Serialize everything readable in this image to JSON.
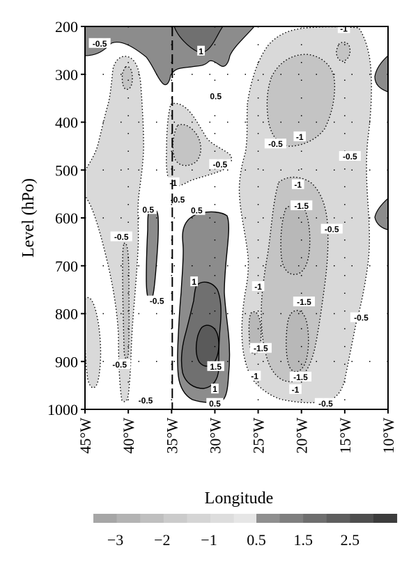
{
  "chart_data": {
    "type": "heatmap",
    "subtype": "filled-contour",
    "title": "",
    "xlabel": "Longitude",
    "ylabel": "Level (hPo)",
    "xlim": [
      45,
      10
    ],
    "ylim": [
      1000,
      200
    ],
    "x_direction": "degrees west, decreasing to the right",
    "y_scale": "pressure, inverted (1000 at bottom, 200 at top)",
    "x_ticks": [
      45,
      40,
      35,
      30,
      25,
      20,
      15,
      10
    ],
    "x_tick_labels": [
      "45°W",
      "40°W",
      "35°W",
      "30°W",
      "25°W",
      "20°W",
      "15°W",
      "10°W"
    ],
    "y_ticks": [
      200,
      300,
      400,
      500,
      600,
      700,
      800,
      900,
      1000
    ],
    "y_tick_labels": [
      "200",
      "300",
      "400",
      "500",
      "600",
      "700",
      "800",
      "900",
      "1000"
    ],
    "grid": "dotted",
    "reference_line": {
      "longitude": 35,
      "style": "dashed"
    },
    "fill_colors": {
      "neg": "#d9d9d9",
      "neg_deep": "#c4c4c4",
      "pos_0_5": "#8c8c8c",
      "pos_1": "#707070",
      "pos_1_5": "#5a5a5a"
    },
    "regions": [
      {
        "sign": "positive",
        "lon_range": [
          45,
          29
        ],
        "level_range": [
          200,
          330
        ],
        "peak": 1.0
      },
      {
        "sign": "positive",
        "lon_range": [
          33,
          28
        ],
        "level_range": [
          580,
          980
        ],
        "peak": 1.5
      },
      {
        "sign": "positive",
        "lon_range": [
          38,
          37
        ],
        "level_range": [
          580,
          770
        ],
        "peak": 0.5
      },
      {
        "sign": "positive",
        "lon_range": [
          11,
          10
        ],
        "level_range": [
          260,
          350
        ],
        "peak": 0.5
      },
      {
        "sign": "positive",
        "lon_range": [
          11,
          10
        ],
        "level_range": [
          560,
          640
        ],
        "peak": 0.5
      },
      {
        "sign": "negative",
        "lon_range": [
          45,
          38
        ],
        "level_range": [
          250,
          950
        ],
        "peak": -0.5
      },
      {
        "sign": "negative",
        "lon_range": [
          36,
          33
        ],
        "level_range": [
          350,
          560
        ],
        "peak": -1.0
      },
      {
        "sign": "negative",
        "lon_range": [
          28,
          14
        ],
        "level_range": [
          200,
          980
        ],
        "peak": -1.5
      }
    ],
    "contour_labels": [
      {
        "text": "-0.5",
        "lon": 43.3,
        "level": 236
      },
      {
        "text": "1",
        "lon": 31.6,
        "level": 252
      },
      {
        "text": "0.5",
        "lon": 29.9,
        "level": 346
      },
      {
        "text": "-1",
        "lon": 15.1,
        "level": 205
      },
      {
        "text": "-0.5",
        "lon": 23.0,
        "level": 446
      },
      {
        "text": "-1",
        "lon": 20.2,
        "level": 431
      },
      {
        "text": "-0.5",
        "lon": 14.4,
        "level": 472
      },
      {
        "text": "-0.5",
        "lon": 29.4,
        "level": 489
      },
      {
        "text": "-1",
        "lon": 34.8,
        "level": 527
      },
      {
        "text": "-0.5",
        "lon": 34.3,
        "level": 562
      },
      {
        "text": "-1",
        "lon": 20.4,
        "level": 531
      },
      {
        "text": "0.5",
        "lon": 37.7,
        "level": 583
      },
      {
        "text": "0.5",
        "lon": 32.1,
        "level": 585
      },
      {
        "text": "-1.5",
        "lon": 20.0,
        "level": 575
      },
      {
        "text": "-0.5",
        "lon": 16.5,
        "level": 624
      },
      {
        "text": "-0.5",
        "lon": 40.8,
        "level": 640
      },
      {
        "text": "1",
        "lon": 32.4,
        "level": 734
      },
      {
        "text": "-0.5",
        "lon": 36.7,
        "level": 774
      },
      {
        "text": "-1",
        "lon": 25.0,
        "level": 744
      },
      {
        "text": "-1.5",
        "lon": 19.7,
        "level": 776
      },
      {
        "text": "-0.5",
        "lon": 13.1,
        "level": 809
      },
      {
        "text": "-1.5",
        "lon": 24.7,
        "level": 873
      },
      {
        "text": "-0.5",
        "lon": 41.0,
        "level": 907
      },
      {
        "text": "1.5",
        "lon": 29.9,
        "level": 911
      },
      {
        "text": "-1",
        "lon": 25.4,
        "level": 931
      },
      {
        "text": "-1.5",
        "lon": 20.1,
        "level": 933
      },
      {
        "text": "1",
        "lon": 30.0,
        "level": 958
      },
      {
        "text": "-1",
        "lon": 20.7,
        "level": 959
      },
      {
        "text": "-0.5",
        "lon": 38.0,
        "level": 982
      },
      {
        "text": "0.5",
        "lon": 30.0,
        "level": 988
      },
      {
        "text": "-0.5",
        "lon": 17.2,
        "level": 988
      }
    ],
    "legend": {
      "placement": "bottom",
      "negative_levels": [
        -3.5,
        -3,
        -2.5,
        -2,
        -1.5,
        -1,
        -0.5
      ],
      "negative_colors": [
        "#a6a6a6",
        "#b3b3b3",
        "#bfbfbf",
        "#cbcbcb",
        "#d5d5d5",
        "#dddddd",
        "#e6e6e6"
      ],
      "negative_labels": [
        "−3",
        "−2",
        "−1"
      ],
      "negative_label_values": [
        -3,
        -2,
        -1
      ],
      "positive_levels": [
        0.5,
        1,
        1.5,
        2,
        2.5,
        3
      ],
      "positive_colors": [
        "#8f8f8f",
        "#7f7f7f",
        "#6e6e6e",
        "#5e5e5e",
        "#4e4e4e",
        "#3c3c3c"
      ],
      "positive_labels": [
        "0.5",
        "1.5",
        "2.5"
      ],
      "positive_label_values": [
        0.5,
        1.5,
        2.5
      ]
    }
  }
}
